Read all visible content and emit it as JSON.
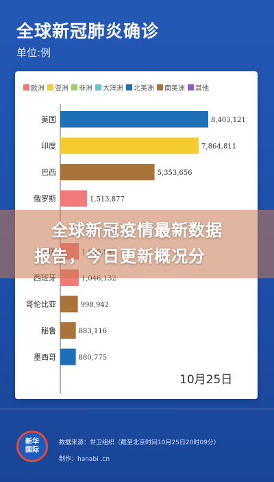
{
  "header": {
    "title": "全球新冠肺炎确诊",
    "unit": "单位:例"
  },
  "overlay": {
    "line1": "全球新冠疫情最新数据",
    "line2": "报告，今日更新概况分"
  },
  "legend": [
    {
      "label": "欧洲",
      "color": "#f07a7a"
    },
    {
      "label": "亚洲",
      "color": "#f5cc2e"
    },
    {
      "label": "非洲",
      "color": "#9bcf6a"
    },
    {
      "label": "大洋洲",
      "color": "#5bc8d8"
    },
    {
      "label": "北美洲",
      "color": "#1e6fb5"
    },
    {
      "label": "南美洲",
      "color": "#a8743a"
    },
    {
      "label": "其他",
      "color": "#8a5cc8"
    }
  ],
  "chart_data": {
    "type": "bar",
    "orientation": "horizontal",
    "categories": [
      "美国",
      "印度",
      "巴西",
      "俄罗斯",
      "",
      "法国",
      "西班牙",
      "哥伦比亚",
      "秘鲁",
      "墨西哥"
    ],
    "values": [
      8403121,
      7864811,
      5353656,
      1513877,
      0,
      1055942,
      1046132,
      998942,
      883116,
      880775
    ],
    "value_labels": [
      "8,403,121",
      "7,864,811",
      "5,353,656",
      "1,513,877",
      "",
      "1,055,942",
      "1,046,132",
      "998,942",
      "883,116",
      "880,775"
    ],
    "colors": [
      "#1e6fb5",
      "#f5cc2e",
      "#a8743a",
      "#f07a7a",
      "#f07a7a",
      "#f07a7a",
      "#f07a7a",
      "#a8743a",
      "#a8743a",
      "#1e6fb5"
    ],
    "xlim": [
      0,
      8403121
    ],
    "grid": false,
    "legend_position": "top",
    "date": "10月25日"
  },
  "footer": {
    "logo": "新华\n国际",
    "source": "数据来源：世卫组织（截至北京时间10月25日20时09分）",
    "producer": "制作：hanabi .cn"
  }
}
